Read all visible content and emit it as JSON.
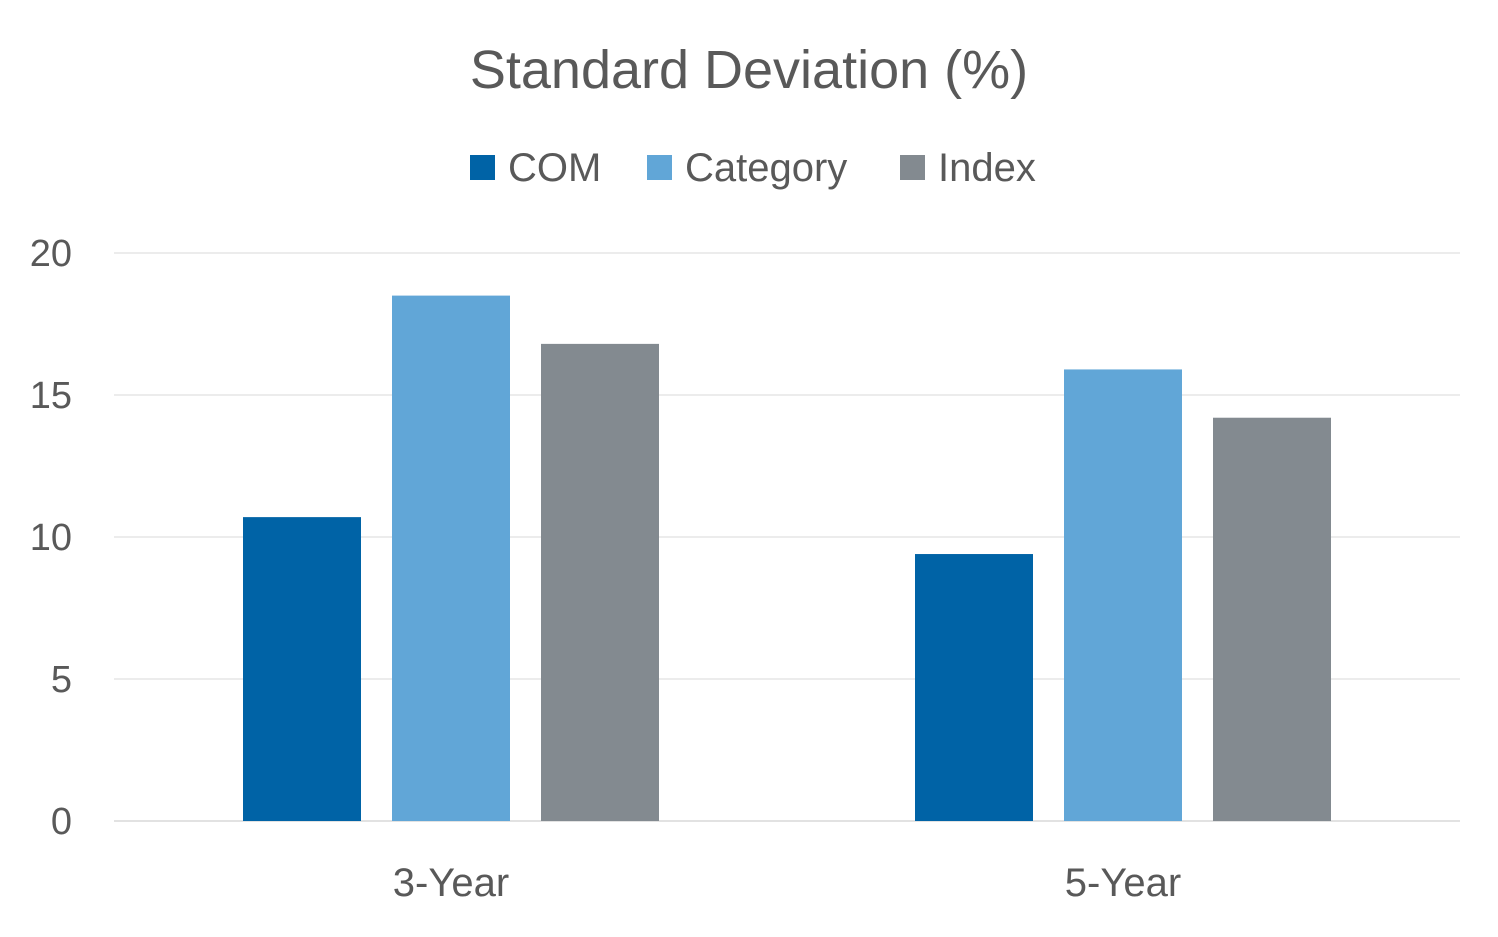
{
  "chart_data": {
    "type": "bar",
    "title": "Standard Deviation (%)",
    "xlabel": "",
    "ylabel": "",
    "categories": [
      "3-Year",
      "5-Year"
    ],
    "series": [
      {
        "name": "COM",
        "values": [
          10.7,
          9.4
        ],
        "color": "#0063a6"
      },
      {
        "name": "Category",
        "values": [
          18.5,
          15.9
        ],
        "color": "#61a6d7"
      },
      {
        "name": "Index",
        "values": [
          16.8,
          14.2
        ],
        "color": "#838a90"
      }
    ],
    "ylim": [
      0,
      20
    ],
    "yticks": [
      "0",
      "5",
      "10",
      "15",
      "20"
    ],
    "grid": true,
    "legend_position": "top-center"
  }
}
